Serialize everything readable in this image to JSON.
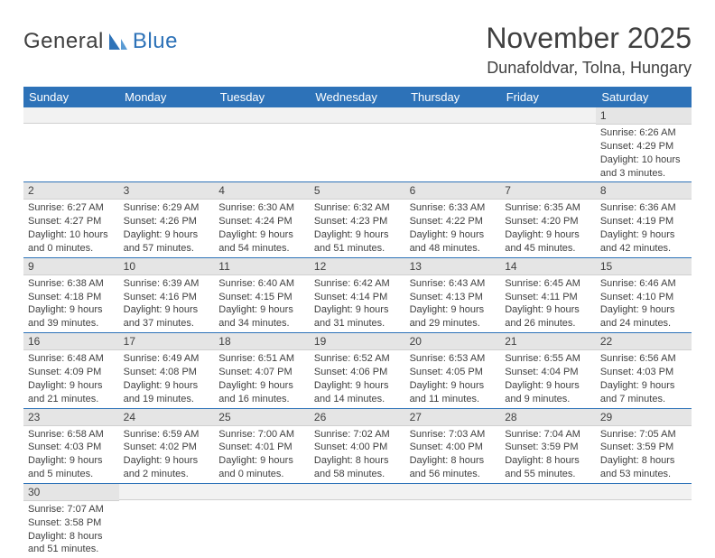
{
  "logo": {
    "textA": "General",
    "textB": "Blue"
  },
  "title": "November 2025",
  "location": "Dunafoldvar, Tolna, Hungary",
  "weekdays": [
    "Sunday",
    "Monday",
    "Tuesday",
    "Wednesday",
    "Thursday",
    "Friday",
    "Saturday"
  ],
  "colors": {
    "header_bg": "#2d72b8",
    "header_text": "#ffffff",
    "daynum_bg": "#e5e5e5",
    "border": "#2d72b8"
  },
  "fonts": {
    "title_size": 32,
    "location_size": 18,
    "weekday_size": 13,
    "daynum_size": 12,
    "body_size": 11
  },
  "rows": [
    [
      {
        "n": "",
        "sr": "",
        "ss": "",
        "dl": ""
      },
      {
        "n": "",
        "sr": "",
        "ss": "",
        "dl": ""
      },
      {
        "n": "",
        "sr": "",
        "ss": "",
        "dl": ""
      },
      {
        "n": "",
        "sr": "",
        "ss": "",
        "dl": ""
      },
      {
        "n": "",
        "sr": "",
        "ss": "",
        "dl": ""
      },
      {
        "n": "",
        "sr": "",
        "ss": "",
        "dl": ""
      },
      {
        "n": "1",
        "sr": "Sunrise: 6:26 AM",
        "ss": "Sunset: 4:29 PM",
        "dl": "Daylight: 10 hours and 3 minutes."
      }
    ],
    [
      {
        "n": "2",
        "sr": "Sunrise: 6:27 AM",
        "ss": "Sunset: 4:27 PM",
        "dl": "Daylight: 10 hours and 0 minutes."
      },
      {
        "n": "3",
        "sr": "Sunrise: 6:29 AM",
        "ss": "Sunset: 4:26 PM",
        "dl": "Daylight: 9 hours and 57 minutes."
      },
      {
        "n": "4",
        "sr": "Sunrise: 6:30 AM",
        "ss": "Sunset: 4:24 PM",
        "dl": "Daylight: 9 hours and 54 minutes."
      },
      {
        "n": "5",
        "sr": "Sunrise: 6:32 AM",
        "ss": "Sunset: 4:23 PM",
        "dl": "Daylight: 9 hours and 51 minutes."
      },
      {
        "n": "6",
        "sr": "Sunrise: 6:33 AM",
        "ss": "Sunset: 4:22 PM",
        "dl": "Daylight: 9 hours and 48 minutes."
      },
      {
        "n": "7",
        "sr": "Sunrise: 6:35 AM",
        "ss": "Sunset: 4:20 PM",
        "dl": "Daylight: 9 hours and 45 minutes."
      },
      {
        "n": "8",
        "sr": "Sunrise: 6:36 AM",
        "ss": "Sunset: 4:19 PM",
        "dl": "Daylight: 9 hours and 42 minutes."
      }
    ],
    [
      {
        "n": "9",
        "sr": "Sunrise: 6:38 AM",
        "ss": "Sunset: 4:18 PM",
        "dl": "Daylight: 9 hours and 39 minutes."
      },
      {
        "n": "10",
        "sr": "Sunrise: 6:39 AM",
        "ss": "Sunset: 4:16 PM",
        "dl": "Daylight: 9 hours and 37 minutes."
      },
      {
        "n": "11",
        "sr": "Sunrise: 6:40 AM",
        "ss": "Sunset: 4:15 PM",
        "dl": "Daylight: 9 hours and 34 minutes."
      },
      {
        "n": "12",
        "sr": "Sunrise: 6:42 AM",
        "ss": "Sunset: 4:14 PM",
        "dl": "Daylight: 9 hours and 31 minutes."
      },
      {
        "n": "13",
        "sr": "Sunrise: 6:43 AM",
        "ss": "Sunset: 4:13 PM",
        "dl": "Daylight: 9 hours and 29 minutes."
      },
      {
        "n": "14",
        "sr": "Sunrise: 6:45 AM",
        "ss": "Sunset: 4:11 PM",
        "dl": "Daylight: 9 hours and 26 minutes."
      },
      {
        "n": "15",
        "sr": "Sunrise: 6:46 AM",
        "ss": "Sunset: 4:10 PM",
        "dl": "Daylight: 9 hours and 24 minutes."
      }
    ],
    [
      {
        "n": "16",
        "sr": "Sunrise: 6:48 AM",
        "ss": "Sunset: 4:09 PM",
        "dl": "Daylight: 9 hours and 21 minutes."
      },
      {
        "n": "17",
        "sr": "Sunrise: 6:49 AM",
        "ss": "Sunset: 4:08 PM",
        "dl": "Daylight: 9 hours and 19 minutes."
      },
      {
        "n": "18",
        "sr": "Sunrise: 6:51 AM",
        "ss": "Sunset: 4:07 PM",
        "dl": "Daylight: 9 hours and 16 minutes."
      },
      {
        "n": "19",
        "sr": "Sunrise: 6:52 AM",
        "ss": "Sunset: 4:06 PM",
        "dl": "Daylight: 9 hours and 14 minutes."
      },
      {
        "n": "20",
        "sr": "Sunrise: 6:53 AM",
        "ss": "Sunset: 4:05 PM",
        "dl": "Daylight: 9 hours and 11 minutes."
      },
      {
        "n": "21",
        "sr": "Sunrise: 6:55 AM",
        "ss": "Sunset: 4:04 PM",
        "dl": "Daylight: 9 hours and 9 minutes."
      },
      {
        "n": "22",
        "sr": "Sunrise: 6:56 AM",
        "ss": "Sunset: 4:03 PM",
        "dl": "Daylight: 9 hours and 7 minutes."
      }
    ],
    [
      {
        "n": "23",
        "sr": "Sunrise: 6:58 AM",
        "ss": "Sunset: 4:03 PM",
        "dl": "Daylight: 9 hours and 5 minutes."
      },
      {
        "n": "24",
        "sr": "Sunrise: 6:59 AM",
        "ss": "Sunset: 4:02 PM",
        "dl": "Daylight: 9 hours and 2 minutes."
      },
      {
        "n": "25",
        "sr": "Sunrise: 7:00 AM",
        "ss": "Sunset: 4:01 PM",
        "dl": "Daylight: 9 hours and 0 minutes."
      },
      {
        "n": "26",
        "sr": "Sunrise: 7:02 AM",
        "ss": "Sunset: 4:00 PM",
        "dl": "Daylight: 8 hours and 58 minutes."
      },
      {
        "n": "27",
        "sr": "Sunrise: 7:03 AM",
        "ss": "Sunset: 4:00 PM",
        "dl": "Daylight: 8 hours and 56 minutes."
      },
      {
        "n": "28",
        "sr": "Sunrise: 7:04 AM",
        "ss": "Sunset: 3:59 PM",
        "dl": "Daylight: 8 hours and 55 minutes."
      },
      {
        "n": "29",
        "sr": "Sunrise: 7:05 AM",
        "ss": "Sunset: 3:59 PM",
        "dl": "Daylight: 8 hours and 53 minutes."
      }
    ],
    [
      {
        "n": "30",
        "sr": "Sunrise: 7:07 AM",
        "ss": "Sunset: 3:58 PM",
        "dl": "Daylight: 8 hours and 51 minutes."
      },
      {
        "n": "",
        "sr": "",
        "ss": "",
        "dl": ""
      },
      {
        "n": "",
        "sr": "",
        "ss": "",
        "dl": ""
      },
      {
        "n": "",
        "sr": "",
        "ss": "",
        "dl": ""
      },
      {
        "n": "",
        "sr": "",
        "ss": "",
        "dl": ""
      },
      {
        "n": "",
        "sr": "",
        "ss": "",
        "dl": ""
      },
      {
        "n": "",
        "sr": "",
        "ss": "",
        "dl": ""
      }
    ]
  ]
}
